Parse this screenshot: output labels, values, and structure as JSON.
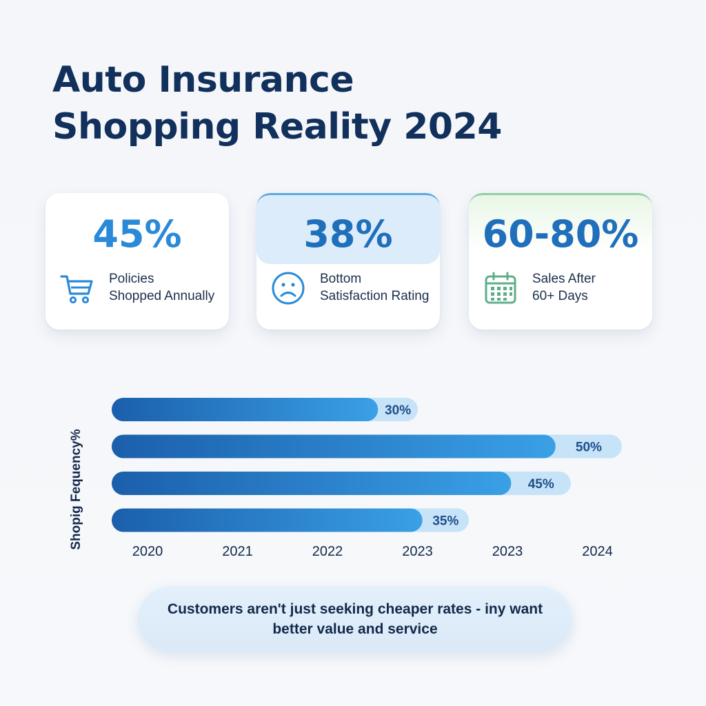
{
  "title": {
    "line1": "Auto Insurance",
    "line2": "Shopping Reality 2024"
  },
  "stats": [
    {
      "value": "45%",
      "label_line1": "Policies",
      "label_line2": "Shopped Annually",
      "icon": "shopping-cart-icon",
      "color": "#2a8ad8"
    },
    {
      "value": "38%",
      "label_line1": "Bottom",
      "label_line2": "Satisfaction Rating",
      "icon": "sad-face-icon",
      "color": "#1f6fbb"
    },
    {
      "value": "60-80%",
      "label_line1": "Sales After",
      "label_line2": "60+ Days",
      "icon": "calendar-icon",
      "color": "#1f6fbb"
    }
  ],
  "chart_data": {
    "type": "bar",
    "orientation": "horizontal",
    "ylabel": "Shopig Fequency%",
    "values": [
      30,
      50,
      45,
      35
    ],
    "value_labels": [
      "30%",
      "50%",
      "45%",
      "35%"
    ],
    "x_ticks": [
      "2020",
      "2021",
      "2022",
      "2023",
      "2023",
      "2024"
    ],
    "xlim": [
      0,
      50
    ],
    "grid": false,
    "colors": {
      "bar_start": "#1b5fab",
      "bar_end": "#3aa0e6",
      "track": "#c6e3f8",
      "label": "#1d4f8a"
    }
  },
  "callout": {
    "text": "Customers aren't just seeking cheaper rates - iny want better value and service"
  }
}
